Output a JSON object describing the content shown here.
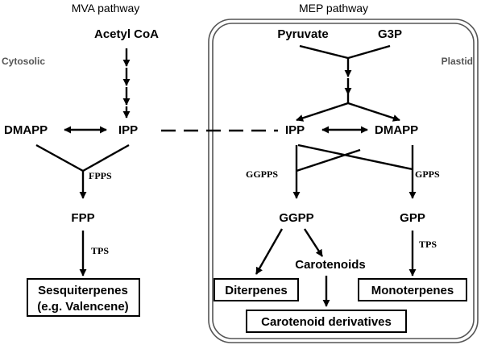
{
  "headers": {
    "mva": "MVA pathway",
    "mep": "MEP pathway"
  },
  "compartments": {
    "cytosolic": "Cytosolic",
    "plastid": "Plastid"
  },
  "nodes": {
    "acetyl_coa": "Acetyl CoA",
    "pyruvate": "Pyruvate",
    "g3p": "G3P",
    "dmapp_cyt": "DMAPP",
    "ipp_cyt": "IPP",
    "ipp_pla": "IPP",
    "dmapp_pla": "DMAPP",
    "fpp": "FPP",
    "ggpp": "GGPP",
    "gpp": "GPP",
    "carotenoids": "Carotenoids"
  },
  "enzymes": {
    "fpps": "FPPS",
    "tps_left": "TPS",
    "ggpps": "GGPPS",
    "gpps": "GPPS",
    "tps_right": "TPS"
  },
  "products": {
    "sesquiterpenes_line1": "Sesquiterpenes",
    "sesquiterpenes_line2": "(e.g. Valencene)",
    "diterpenes": "Diterpenes",
    "monoterpenes": "Monoterpenes",
    "carotenoid_derivatives": "Carotenoid derivatives"
  }
}
